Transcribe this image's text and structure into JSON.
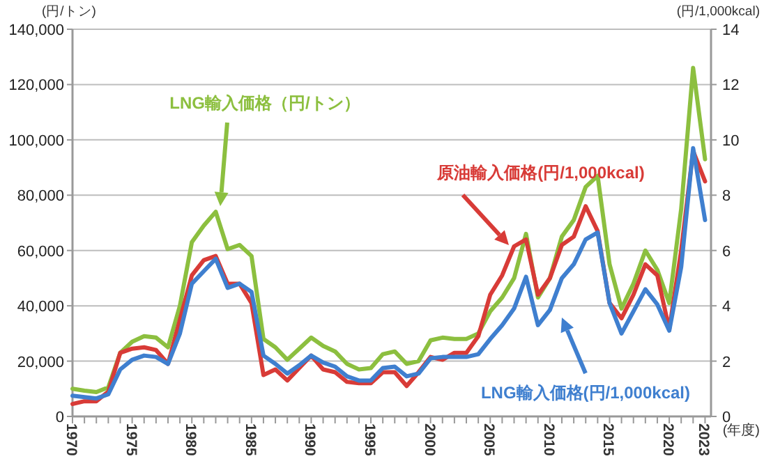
{
  "chart_data": {
    "type": "line",
    "ylabel": "(円/トン)",
    "y2label": "(円/1,000kcal)",
    "xlabel": "(年度)",
    "x": [
      1970,
      1971,
      1972,
      1973,
      1974,
      1975,
      1976,
      1977,
      1978,
      1979,
      1980,
      1981,
      1982,
      1983,
      1984,
      1985,
      1986,
      1987,
      1988,
      1989,
      1990,
      1991,
      1992,
      1993,
      1994,
      1995,
      1996,
      1997,
      1998,
      1999,
      2000,
      2001,
      2002,
      2003,
      2004,
      2005,
      2006,
      2007,
      2008,
      2009,
      2010,
      2011,
      2012,
      2013,
      2014,
      2015,
      2016,
      2017,
      2018,
      2019,
      2020,
      2021,
      2022,
      2023
    ],
    "series": [
      {
        "name": "LNG輸入価格（円/トン）",
        "color": "#8cbf3f",
        "values": [
          10000,
          9300,
          8800,
          10500,
          23000,
          27000,
          29000,
          28500,
          25000,
          40000,
          63000,
          69000,
          74000,
          60500,
          62000,
          58000,
          28000,
          25000,
          20500,
          24500,
          28500,
          25500,
          23500,
          19000,
          17000,
          17500,
          22500,
          23500,
          19000,
          20000,
          27500,
          28500,
          28000,
          28000,
          30000,
          38000,
          43000,
          50000,
          66000,
          43000,
          50000,
          65000,
          71000,
          83000,
          87000,
          55000,
          39000,
          48000,
          60000,
          53000,
          41000,
          75000,
          126000,
          93000
        ]
      },
      {
        "name": "原油輸入価格(円/1,000kcal)",
        "color": "#d83b37",
        "axis": "y2",
        "values": [
          0.45,
          0.55,
          0.55,
          0.9,
          2.3,
          2.45,
          2.5,
          2.4,
          1.9,
          3.5,
          5.1,
          5.65,
          5.8,
          4.8,
          4.8,
          4.1,
          1.5,
          1.7,
          1.3,
          1.75,
          2.2,
          1.7,
          1.6,
          1.25,
          1.2,
          1.2,
          1.6,
          1.6,
          1.1,
          1.6,
          2.15,
          2.05,
          2.3,
          2.3,
          2.9,
          4.4,
          5.1,
          6.15,
          6.4,
          4.4,
          5.0,
          6.2,
          6.5,
          7.6,
          6.7,
          4.1,
          3.55,
          4.4,
          5.5,
          5.1,
          3.15,
          6.0,
          9.6,
          8.5
        ]
      },
      {
        "name": "LNG輸入価格(円/1,000kcal)",
        "color": "#3f7fcf",
        "axis": "y2",
        "values": [
          0.75,
          0.7,
          0.65,
          0.8,
          1.7,
          2.05,
          2.2,
          2.15,
          1.9,
          3.0,
          4.8,
          5.25,
          5.7,
          4.65,
          4.8,
          4.5,
          2.2,
          1.9,
          1.55,
          1.85,
          2.2,
          1.95,
          1.8,
          1.45,
          1.3,
          1.3,
          1.75,
          1.8,
          1.45,
          1.55,
          2.1,
          2.15,
          2.15,
          2.15,
          2.25,
          2.8,
          3.3,
          3.9,
          5.05,
          3.3,
          3.85,
          5.0,
          5.5,
          6.4,
          6.65,
          4.1,
          3.0,
          3.8,
          4.6,
          4.05,
          3.1,
          5.4,
          9.7,
          7.1
        ]
      }
    ],
    "xlim": [
      1970,
      2023.5
    ],
    "xticks": [
      {
        "value": 1970,
        "label": "1970"
      },
      {
        "value": 1971,
        "label": null
      },
      {
        "value": 1972,
        "label": null
      },
      {
        "value": 1973,
        "label": null
      },
      {
        "value": 1974,
        "label": null
      },
      {
        "value": 1975,
        "label": "1975"
      },
      {
        "value": 1976,
        "label": null
      },
      {
        "value": 1977,
        "label": null
      },
      {
        "value": 1978,
        "label": null
      },
      {
        "value": 1979,
        "label": null
      },
      {
        "value": 1980,
        "label": "1980"
      },
      {
        "value": 1981,
        "label": null
      },
      {
        "value": 1982,
        "label": null
      },
      {
        "value": 1983,
        "label": null
      },
      {
        "value": 1984,
        "label": null
      },
      {
        "value": 1985,
        "label": "1985"
      },
      {
        "value": 1986,
        "label": null
      },
      {
        "value": 1987,
        "label": null
      },
      {
        "value": 1988,
        "label": null
      },
      {
        "value": 1989,
        "label": null
      },
      {
        "value": 1990,
        "label": "1990"
      },
      {
        "value": 1991,
        "label": null
      },
      {
        "value": 1992,
        "label": null
      },
      {
        "value": 1993,
        "label": null
      },
      {
        "value": 1994,
        "label": null
      },
      {
        "value": 1995,
        "label": "1995"
      },
      {
        "value": 1996,
        "label": null
      },
      {
        "value": 1997,
        "label": null
      },
      {
        "value": 1998,
        "label": null
      },
      {
        "value": 1999,
        "label": null
      },
      {
        "value": 2000,
        "label": "2000"
      },
      {
        "value": 2001,
        "label": null
      },
      {
        "value": 2002,
        "label": null
      },
      {
        "value": 2003,
        "label": null
      },
      {
        "value": 2004,
        "label": null
      },
      {
        "value": 2005,
        "label": "2005"
      },
      {
        "value": 2006,
        "label": null
      },
      {
        "value": 2007,
        "label": null
      },
      {
        "value": 2008,
        "label": null
      },
      {
        "value": 2009,
        "label": null
      },
      {
        "value": 2010,
        "label": "2010"
      },
      {
        "value": 2011,
        "label": null
      },
      {
        "value": 2012,
        "label": null
      },
      {
        "value": 2013,
        "label": null
      },
      {
        "value": 2014,
        "label": null
      },
      {
        "value": 2015,
        "label": "2015"
      },
      {
        "value": 2016,
        "label": null
      },
      {
        "value": 2017,
        "label": null
      },
      {
        "value": 2018,
        "label": null
      },
      {
        "value": 2019,
        "label": null
      },
      {
        "value": 2020,
        "label": "2020"
      },
      {
        "value": 2021,
        "label": null
      },
      {
        "value": 2022,
        "label": null
      },
      {
        "value": 2023,
        "label": "2023"
      }
    ],
    "ylim": [
      0,
      140000
    ],
    "yticks": [
      0,
      {
        "value": 20000,
        "label": "20,000"
      },
      {
        "value": 40000,
        "label": "40,000"
      },
      {
        "value": 60000,
        "label": "60,000"
      },
      {
        "value": 80000,
        "label": "80,000"
      },
      {
        "value": 100000,
        "label": "100,000"
      },
      {
        "value": 120000,
        "label": "120,000"
      },
      {
        "value": 140000,
        "label": "140,000"
      }
    ],
    "y2lim": [
      0,
      14
    ],
    "y2ticks": [
      0,
      2,
      4,
      6,
      8,
      10,
      12,
      14
    ],
    "grid": "y",
    "legend": false,
    "marker": "none",
    "line_style": "solid"
  }
}
